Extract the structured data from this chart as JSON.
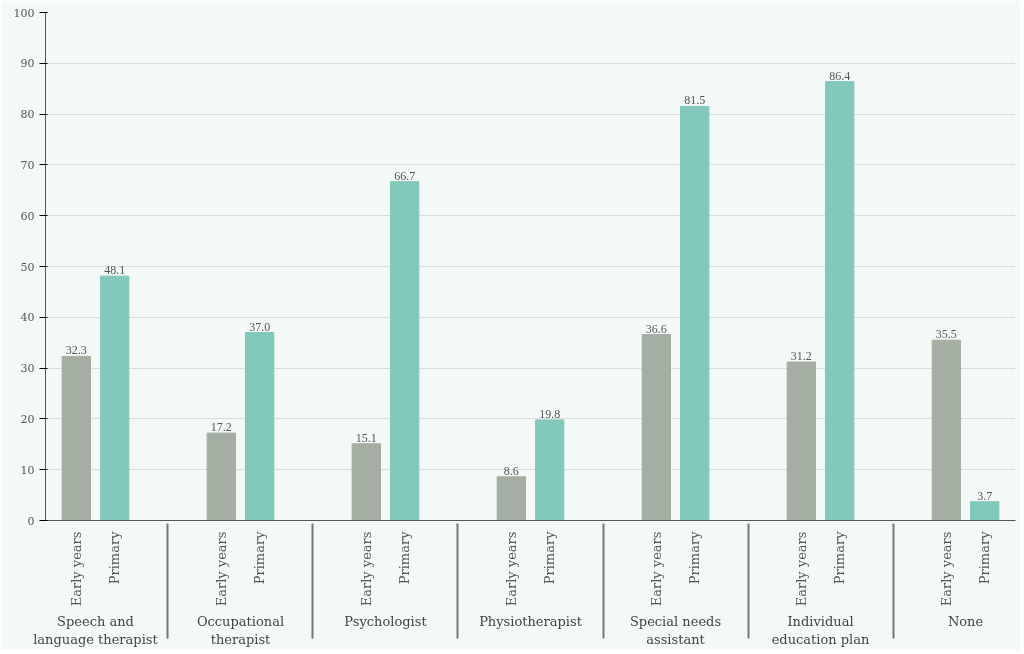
{
  "chart_data": {
    "type": "bar",
    "categories": [
      "Speech and language therapist",
      "Occupational therapist",
      "Psychologist",
      "Physiotherapist",
      "Special needs assistant",
      "Individual education plan",
      "None"
    ],
    "series": [
      {
        "name": "Early years",
        "color": "#a5aea3",
        "values": [
          32.3,
          17.2,
          15.1,
          8.6,
          36.6,
          31.2,
          35.5
        ]
      },
      {
        "name": "Primary",
        "color": "#82c8bb",
        "values": [
          48.1,
          37.0,
          66.7,
          19.8,
          81.5,
          86.4,
          3.7
        ],
        "value_labels": [
          "48.1",
          "37.0",
          "66.7",
          "19.8",
          "81.5",
          "86.4",
          "3.7"
        ]
      }
    ],
    "ylim": [
      0,
      100
    ],
    "yticks": [
      0,
      10,
      20,
      30,
      40,
      50,
      60,
      70,
      80,
      90,
      100
    ],
    "grid": "y",
    "legend": false,
    "data_labels": true
  }
}
